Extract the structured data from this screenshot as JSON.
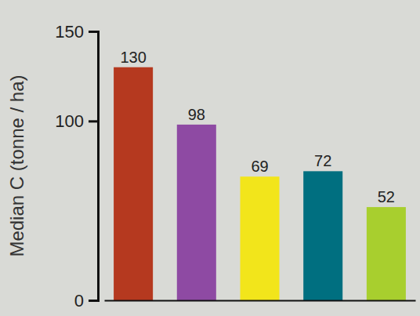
{
  "chart_data": {
    "type": "bar",
    "y_label": "Median C (tonne / ha)",
    "categories": [
      null,
      null,
      null,
      null,
      null
    ],
    "values": [
      130,
      98,
      69,
      72,
      52
    ],
    "colors": [
      "#b5391f",
      "#8e4aa3",
      "#f2e51b",
      "#006f80",
      "#a8cf2e"
    ],
    "ylim": [
      0,
      150
    ],
    "yticks": [
      0,
      100,
      150
    ],
    "data_labels": true
  }
}
